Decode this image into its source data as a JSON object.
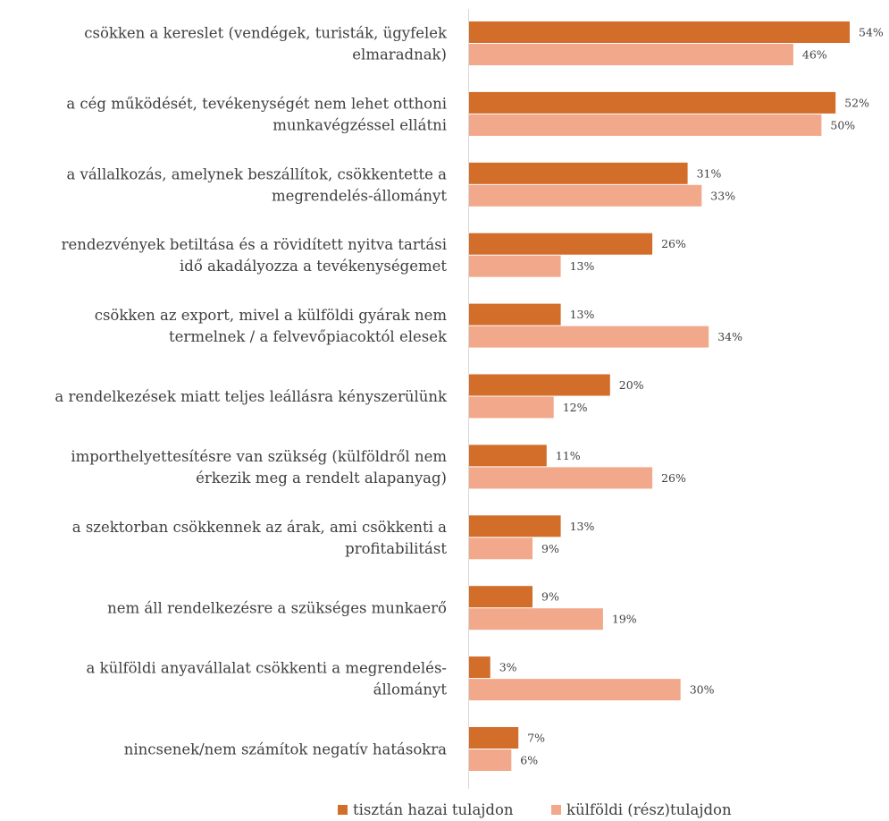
{
  "chart_data": {
    "type": "bar",
    "orientation": "horizontal",
    "title": "",
    "xlabel": "",
    "ylabel": "",
    "xlim": [
      0,
      54
    ],
    "grid": false,
    "legend_position": "bottom",
    "categories": [
      [
        "csökken a kereslet (vendégek, turisták, ügyfelek",
        "elmaradnak)"
      ],
      [
        "a cég működését, tevékenységét nem lehet otthoni",
        "munkavégzéssel ellátni"
      ],
      [
        "a vállalkozás, amelynek beszállítok, csökkentette a",
        "megrendelés-állományt"
      ],
      [
        "rendezvények betiltása és a rövidített nyitva tartási",
        "idő akadályozza a tevékenységemet"
      ],
      [
        "csökken az export, mivel a külföldi gyárak nem",
        "termelnek / a felvevőpiacoktól elesek"
      ],
      [
        "a rendelkezések miatt teljes leállásra kényszerülünk"
      ],
      [
        "importhelyettesítésre van szükség (külföldről nem",
        "érkezik meg a rendelt alapanyag)"
      ],
      [
        "a szektorban csökkennek az árak, ami csökkenti a",
        "profitabilitást"
      ],
      [
        "nem áll rendelkezésre a szükséges munkaerő"
      ],
      [
        "a külföldi anyavállalat csökkenti a megrendelés-",
        "állományt"
      ],
      [
        "nincsenek/nem számítok negatív hatásokra"
      ]
    ],
    "series": [
      {
        "name": "tisztán hazai tulajdon",
        "color": "#d26d2a",
        "values": [
          54,
          52,
          31,
          26,
          13,
          20,
          11,
          13,
          9,
          3,
          7
        ],
        "labels": [
          "54%",
          "52%",
          "31%",
          "26%",
          "13%",
          "20%",
          "11%",
          "13%",
          "9%",
          "3%",
          "7%"
        ]
      },
      {
        "name": "külföldi (rész)tulajdon",
        "color": "#f2a88a",
        "values": [
          46,
          50,
          33,
          13,
          34,
          12,
          26,
          9,
          19,
          30,
          6
        ],
        "labels": [
          "46%",
          "50%",
          "33%",
          "13%",
          "34%",
          "12%",
          "26%",
          "9%",
          "19%",
          "30%",
          "6%"
        ]
      }
    ]
  }
}
